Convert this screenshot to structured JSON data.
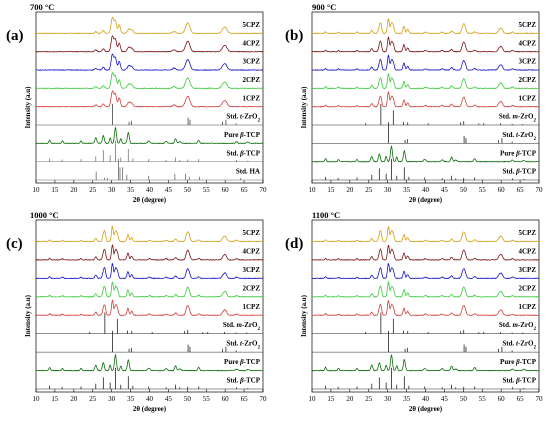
{
  "chart_data": [
    {
      "type": "line",
      "panel": "(a)",
      "temperature": "700 °C",
      "xlabel": "2θ (degree)",
      "ylabel": "Intensity (a.u)",
      "xlim": [
        10,
        70
      ],
      "x_ticks": [
        "10",
        "15",
        "20",
        "25",
        "30",
        "35",
        "40",
        "45",
        "50",
        "55",
        "60",
        "65",
        "70"
      ],
      "series": [
        {
          "name": "5CPZ",
          "color": "#D4A017",
          "kind": "tetragonal"
        },
        {
          "name": "4CPZ",
          "color": "#7B1414",
          "kind": "tetragonal"
        },
        {
          "name": "3CPZ",
          "color": "#1515C8",
          "kind": "tetragonal"
        },
        {
          "name": "2CPZ",
          "color": "#3ACB3A",
          "kind": "tetragonal"
        },
        {
          "name": "1CPZ",
          "color": "#D0413E",
          "kind": "tetragonal"
        },
        {
          "name": "Std. t-ZrO2",
          "color": "#444444",
          "kind": "sticks_t"
        },
        {
          "name": "Pure β-TCP",
          "color": "#0E6E0E",
          "kind": "tcp"
        },
        {
          "name": "Std. β-TCP",
          "color": "#777777",
          "kind": "sticks_b"
        },
        {
          "name": "Std. HA",
          "color": "#666666",
          "kind": "sticks_ha"
        }
      ]
    },
    {
      "type": "line",
      "panel": "(b)",
      "temperature": "900 °C",
      "xlabel": "2θ (degree)",
      "ylabel": "Intensity (a.u)",
      "xlim": [
        10,
        70
      ],
      "x_ticks": [
        "10",
        "15",
        "20",
        "25",
        "30",
        "35",
        "40",
        "45",
        "50",
        "55",
        "60",
        "65",
        "70"
      ],
      "series": [
        {
          "name": "5CPZ",
          "color": "#D4A017",
          "kind": "mixed"
        },
        {
          "name": "4CPZ",
          "color": "#7B1414",
          "kind": "mixed"
        },
        {
          "name": "3CPZ",
          "color": "#1515C8",
          "kind": "mixed"
        },
        {
          "name": "2CPZ",
          "color": "#3ACB3A",
          "kind": "mixed"
        },
        {
          "name": "1CPZ",
          "color": "#D0413E",
          "kind": "mixed"
        },
        {
          "name": "Std. m-ZrO2",
          "color": "#222222",
          "kind": "sticks_m"
        },
        {
          "name": "Std. t-ZrO2",
          "color": "#222222",
          "kind": "sticks_t"
        },
        {
          "name": "Pure β-TCP",
          "color": "#0E6E0E",
          "kind": "tcp"
        },
        {
          "name": "Std. β-TCP",
          "color": "#222222",
          "kind": "sticks_b"
        }
      ]
    },
    {
      "type": "line",
      "panel": "(c)",
      "temperature": "1000 °C",
      "xlabel": "2θ (degree)",
      "ylabel": "Intensity (a.u)",
      "xlim": [
        10,
        70
      ],
      "x_ticks": [
        "10",
        "15",
        "20",
        "25",
        "30",
        "35",
        "40",
        "45",
        "50",
        "55",
        "60",
        "65",
        "70"
      ],
      "series": [
        {
          "name": "5CPZ",
          "color": "#D4A017",
          "kind": "mixed"
        },
        {
          "name": "4CPZ",
          "color": "#7B1414",
          "kind": "mixed"
        },
        {
          "name": "3CPZ",
          "color": "#1515C8",
          "kind": "mixed"
        },
        {
          "name": "2CPZ",
          "color": "#3ACB3A",
          "kind": "mixed"
        },
        {
          "name": "1CPZ",
          "color": "#D0413E",
          "kind": "mixed"
        },
        {
          "name": "Std. m-ZrO2",
          "color": "#222222",
          "kind": "sticks_m"
        },
        {
          "name": "Std. t-ZrO2",
          "color": "#222222",
          "kind": "sticks_t"
        },
        {
          "name": "Pure β-TCP",
          "color": "#0E6E0E",
          "kind": "tcp"
        },
        {
          "name": "Std. β-TCP",
          "color": "#222222",
          "kind": "sticks_b"
        }
      ]
    },
    {
      "type": "line",
      "panel": "(d)",
      "temperature": "1100 °C",
      "xlabel": "2θ (degree)",
      "ylabel": "Intensity (a.u)",
      "xlim": [
        10,
        70
      ],
      "x_ticks": [
        "10",
        "15",
        "20",
        "25",
        "30",
        "35",
        "40",
        "45",
        "50",
        "55",
        "60",
        "65",
        "70"
      ],
      "series": [
        {
          "name": "5CPZ",
          "color": "#D4A017",
          "kind": "mixed"
        },
        {
          "name": "4CPZ",
          "color": "#7B1414",
          "kind": "mixed"
        },
        {
          "name": "3CPZ",
          "color": "#1515C8",
          "kind": "mixed"
        },
        {
          "name": "2CPZ",
          "color": "#3ACB3A",
          "kind": "mixed"
        },
        {
          "name": "1CPZ",
          "color": "#D0413E",
          "kind": "mixed"
        },
        {
          "name": "Std. m-ZrO2",
          "color": "#222222",
          "kind": "sticks_m"
        },
        {
          "name": "Std. t-ZrO2",
          "color": "#222222",
          "kind": "sticks_t"
        },
        {
          "name": "Pure β-TCP",
          "color": "#0E6E0E",
          "kind": "tcp"
        },
        {
          "name": "Std. β-TCP",
          "color": "#222222",
          "kind": "sticks_b"
        }
      ]
    }
  ]
}
